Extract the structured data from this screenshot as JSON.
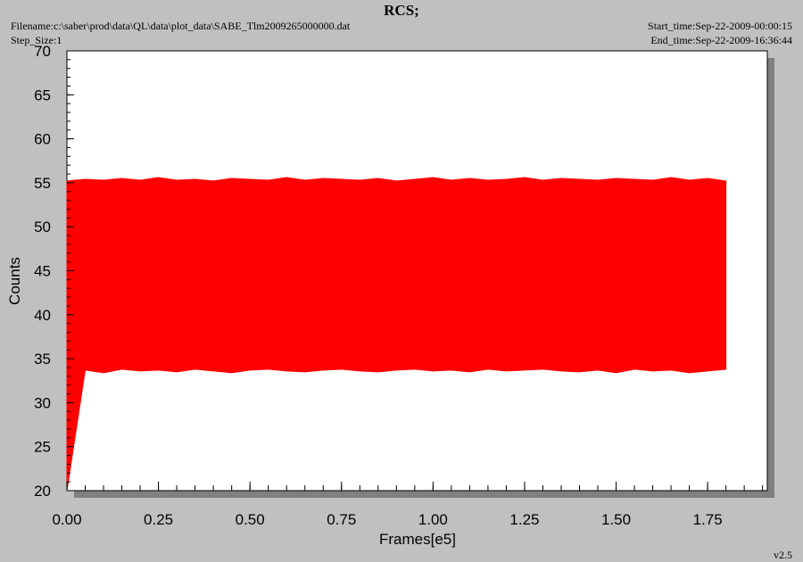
{
  "chart_data": {
    "type": "range-area",
    "title": "RCS;",
    "filename": "Filename:c:\\saber\\prod\\data\\QL\\data\\plot_data\\SABE_Tlm2009265000000.dat",
    "step_size": "Step_Size:1",
    "start_time": "Start_time:Sep-22-2009-00:00:15",
    "end_time": "End_time:Sep-22-2009-16:36:44",
    "version": "v2.5",
    "xlabel": "Frames[e5]",
    "ylabel": "Counts",
    "xlim": [
      0,
      1.913
    ],
    "ylim": [
      20,
      70
    ],
    "xticks": [
      {
        "value": 0,
        "label": "0.00"
      },
      {
        "value": 0.25,
        "label": "0.25"
      },
      {
        "value": 0.5,
        "label": "0.50"
      },
      {
        "value": 0.75,
        "label": "0.75"
      },
      {
        "value": 1,
        "label": "1.00"
      },
      {
        "value": 1.25,
        "label": "1.25"
      },
      {
        "value": 1.5,
        "label": "1.50"
      },
      {
        "value": 1.75,
        "label": "1.75"
      }
    ],
    "yticks": [
      20,
      25,
      30,
      35,
      40,
      45,
      50,
      55,
      60,
      65,
      70
    ],
    "xminor": 0.05,
    "yminor": 1,
    "series": [
      {
        "color": "#ff0000",
        "x": [
          0,
          0.05,
          0.1,
          0.15,
          0.2,
          0.25,
          0.3,
          0.35,
          0.4,
          0.45,
          0.5,
          0.55,
          0.6,
          0.65,
          0.7,
          0.75,
          0.8,
          0.85,
          0.9,
          0.95,
          1,
          1.05,
          1.1,
          1.15,
          1.2,
          1.25,
          1.3,
          1.35,
          1.4,
          1.45,
          1.5,
          1.55,
          1.6,
          1.65,
          1.7,
          1.75,
          1.8
        ],
        "upper": [
          55.2,
          55.4,
          55.3,
          55.5,
          55.3,
          55.6,
          55.3,
          55.4,
          55.2,
          55.5,
          55.4,
          55.3,
          55.6,
          55.3,
          55.5,
          55.4,
          55.3,
          55.5,
          55.2,
          55.4,
          55.6,
          55.3,
          55.5,
          55.3,
          55.4,
          55.6,
          55.3,
          55.5,
          55.4,
          55.3,
          55.5,
          55.4,
          55.3,
          55.6,
          55.3,
          55.5,
          55.2
        ],
        "lower": [
          20,
          33.7,
          33.4,
          33.8,
          33.6,
          33.7,
          33.5,
          33.8,
          33.6,
          33.4,
          33.7,
          33.8,
          33.6,
          33.5,
          33.7,
          33.8,
          33.6,
          33.5,
          33.7,
          33.8,
          33.6,
          33.7,
          33.5,
          33.8,
          33.6,
          33.7,
          33.8,
          33.6,
          33.5,
          33.7,
          33.4,
          33.8,
          33.6,
          33.7,
          33.4,
          33.6,
          33.8
        ]
      }
    ]
  }
}
